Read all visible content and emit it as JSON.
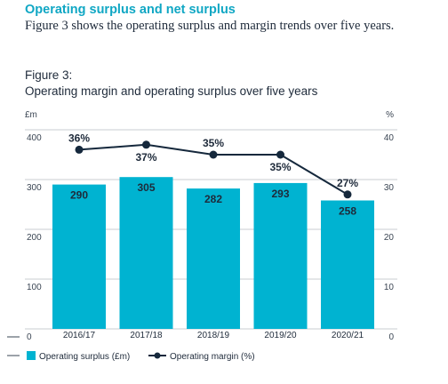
{
  "heading": "Operating surplus and net surplus",
  "intro": "Figure 3 shows the operating surplus and margin trends over five years.",
  "figure_label": "Figure 3:",
  "chart_title": "Operating margin and operating surplus over five years",
  "colors": {
    "bar": "#00b3d1",
    "line": "#15283c",
    "heading": "#10a7c4",
    "grid": "#c9cdd2"
  },
  "chart_data": {
    "type": "bar",
    "title": "Operating margin and operating surplus over five years",
    "categories": [
      "2016/17",
      "2017/18",
      "2018/19",
      "2019/20",
      "2020/21"
    ],
    "series": [
      {
        "name": "Operating surplus (£m)",
        "type": "bar",
        "axis": "left",
        "values": [
          290,
          305,
          282,
          293,
          258
        ],
        "labels": [
          "290",
          "305",
          "282",
          "293",
          "258"
        ]
      },
      {
        "name": "Operating margin (%)",
        "type": "line",
        "axis": "right",
        "values": [
          36,
          37,
          35,
          35,
          27
        ],
        "labels": [
          "36%",
          "37%",
          "35%",
          "35%",
          "27%"
        ]
      }
    ],
    "left_axis": {
      "label": "£m",
      "ylim": [
        0,
        400
      ],
      "ticks": [
        "0",
        "100",
        "200",
        "300",
        "400"
      ]
    },
    "right_axis": {
      "label": "%",
      "ylim": [
        0,
        40
      ],
      "ticks": [
        "0",
        "10",
        "20",
        "30",
        "40"
      ]
    },
    "grid": true,
    "legend_position": "bottom-left"
  }
}
